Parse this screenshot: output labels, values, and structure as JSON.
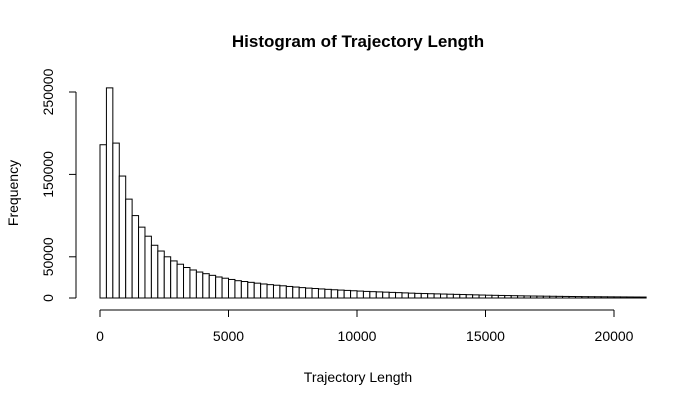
{
  "chart_data": {
    "type": "bar",
    "title": "Histogram of Trajectory Length",
    "xlabel": "Trajectory Length",
    "ylabel": "Frequency",
    "xlim": [
      0,
      21000
    ],
    "ylim": [
      0,
      250000
    ],
    "x_ticks": [
      0,
      5000,
      10000,
      15000,
      20000
    ],
    "x_tick_labels": [
      "0",
      "5000",
      "10000",
      "15000",
      "20000"
    ],
    "y_ticks": [
      0,
      50000,
      150000,
      250000
    ],
    "y_tick_labels": [
      "0",
      "50000",
      "150000",
      "250000"
    ],
    "bin_width": 250,
    "bin_start": 0,
    "values": [
      186000,
      255000,
      188000,
      148000,
      120000,
      100000,
      86000,
      75000,
      64000,
      57000,
      50000,
      45000,
      41000,
      37000,
      34000,
      31500,
      29500,
      27500,
      25500,
      24000,
      22500,
      21000,
      20000,
      19000,
      18000,
      17000,
      16200,
      15500,
      14800,
      14000,
      13300,
      12600,
      12000,
      11500,
      11000,
      10500,
      10000,
      9600,
      9200,
      8800,
      8400,
      8000,
      7700,
      7400,
      7100,
      6800,
      6500,
      6200,
      5900,
      5600,
      5400,
      5200,
      5000,
      4800,
      4600,
      4400,
      4200,
      4000,
      3800,
      3600,
      3400,
      3250,
      3100,
      2950,
      2800,
      2650,
      2500,
      2400,
      2300,
      2200,
      2100,
      2000,
      1900,
      1800,
      1700,
      1600,
      1550,
      1500,
      1450,
      1400,
      1350,
      1300,
      1250,
      1200,
      1150
    ],
    "legend": "none",
    "grid": false
  }
}
